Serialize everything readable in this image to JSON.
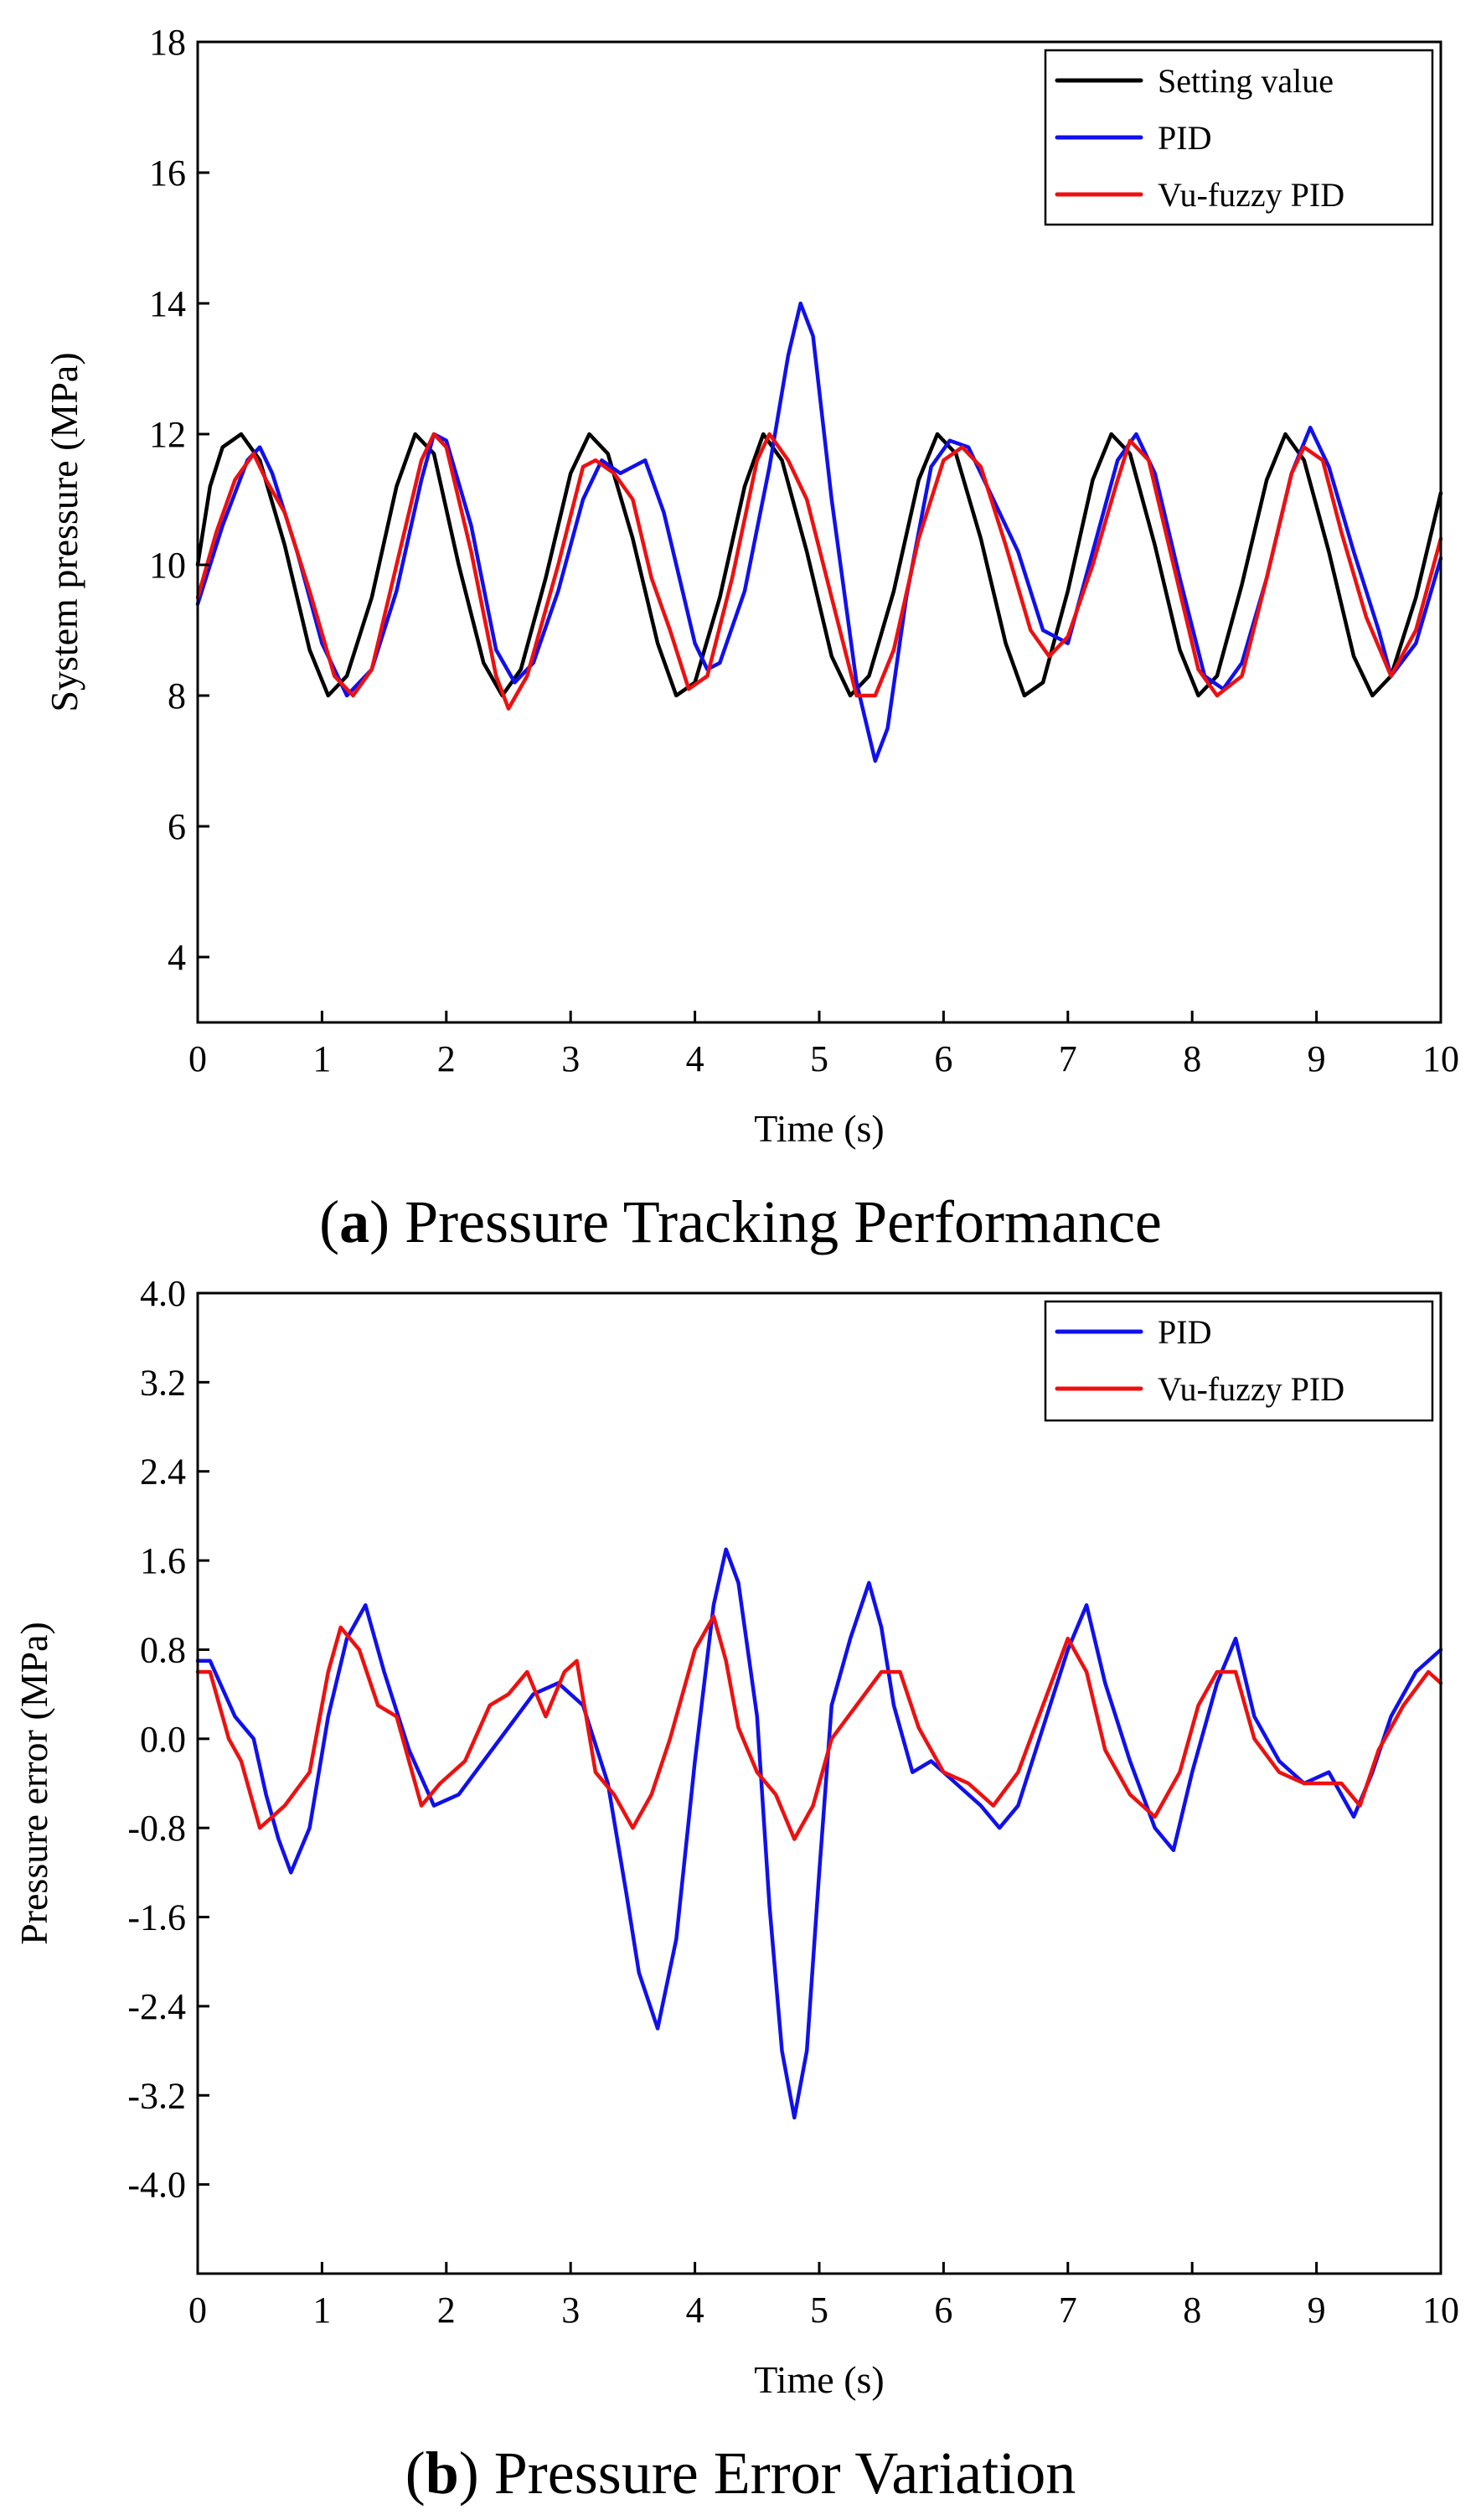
{
  "figure": {
    "panels": [
      {
        "panel_id": "a",
        "caption_letter": "a",
        "caption_text": "Pressure Tracking Performance"
      },
      {
        "panel_id": "b",
        "caption_letter": "b",
        "caption_text": "Pressure Error Variation"
      }
    ]
  },
  "colors": {
    "setting": "#000000",
    "pid": "#1010ee",
    "fuzzy": "#ee1010"
  },
  "chart_data": [
    {
      "type": "line",
      "title": "(a) Pressure Tracking Performance",
      "xlabel": "Time (s)",
      "ylabel": "System pressure (MPa)",
      "xlim": [
        0,
        10
      ],
      "ylim": [
        3,
        18
      ],
      "xticks": [
        "0",
        "1",
        "2",
        "3",
        "4",
        "5",
        "6",
        "7",
        "8",
        "9",
        "10"
      ],
      "yticks": [
        "4",
        "6",
        "8",
        "10",
        "12",
        "14",
        "16",
        "18"
      ],
      "xtick_values": [
        0,
        1,
        2,
        3,
        4,
        5,
        6,
        7,
        8,
        9,
        10
      ],
      "ytick_values": [
        4,
        6,
        8,
        10,
        12,
        14,
        16,
        18
      ],
      "legend_position": "top-right",
      "series": [
        {
          "name": "Setting value",
          "color": "#000000",
          "x": [
            0,
            0.1,
            0.2,
            0.35,
            0.5,
            0.7,
            0.9,
            1.05,
            1.2,
            1.4,
            1.6,
            1.75,
            1.9,
            2.1,
            2.3,
            2.45,
            2.6,
            2.8,
            3.0,
            3.15,
            3.3,
            3.5,
            3.7,
            3.85,
            4.0,
            4.2,
            4.4,
            4.55,
            4.7,
            4.9,
            5.1,
            5.25,
            5.4,
            5.6,
            5.8,
            5.95,
            6.1,
            6.3,
            6.5,
            6.65,
            6.8,
            7.0,
            7.2,
            7.35,
            7.5,
            7.7,
            7.9,
            8.05,
            8.2,
            8.4,
            8.6,
            8.75,
            8.9,
            9.1,
            9.3,
            9.45,
            9.6,
            9.8,
            10.0
          ],
          "y": [
            10.0,
            11.2,
            11.8,
            12.0,
            11.6,
            10.3,
            8.7,
            8.0,
            8.3,
            9.5,
            11.2,
            12.0,
            11.7,
            10.0,
            8.5,
            8.0,
            8.4,
            9.8,
            11.4,
            12.0,
            11.7,
            10.4,
            8.8,
            8.0,
            8.2,
            9.5,
            11.2,
            12.0,
            11.6,
            10.2,
            8.6,
            8.0,
            8.3,
            9.6,
            11.3,
            12.0,
            11.7,
            10.4,
            8.8,
            8.0,
            8.2,
            9.6,
            11.3,
            12.0,
            11.7,
            10.3,
            8.7,
            8.0,
            8.3,
            9.7,
            11.3,
            12.0,
            11.6,
            10.2,
            8.6,
            8.0,
            8.3,
            9.5,
            11.1
          ]
        },
        {
          "name": "PID",
          "color": "#1010ee",
          "x": [
            0,
            0.2,
            0.4,
            0.5,
            0.6,
            0.8,
            1.0,
            1.2,
            1.4,
            1.6,
            1.8,
            1.9,
            2.0,
            2.2,
            2.4,
            2.55,
            2.7,
            2.9,
            3.1,
            3.25,
            3.4,
            3.6,
            3.75,
            3.9,
            4.0,
            4.1,
            4.2,
            4.4,
            4.6,
            4.75,
            4.85,
            4.95,
            5.1,
            5.3,
            5.45,
            5.55,
            5.7,
            5.9,
            6.05,
            6.2,
            6.4,
            6.6,
            6.8,
            7.0,
            7.2,
            7.4,
            7.55,
            7.7,
            7.9,
            8.1,
            8.25,
            8.4,
            8.6,
            8.8,
            8.95,
            9.1,
            9.3,
            9.5,
            9.6,
            9.8,
            10.0
          ],
          "y": [
            9.4,
            10.6,
            11.6,
            11.8,
            11.4,
            10.2,
            8.8,
            8.0,
            8.4,
            9.6,
            11.3,
            12.0,
            11.9,
            10.6,
            8.7,
            8.2,
            8.5,
            9.6,
            11.0,
            11.6,
            11.4,
            11.6,
            10.8,
            9.6,
            8.8,
            8.4,
            8.5,
            9.6,
            11.5,
            13.2,
            14.0,
            13.5,
            11.0,
            8.2,
            7.0,
            7.5,
            9.5,
            11.5,
            11.9,
            11.8,
            11.0,
            10.2,
            9.0,
            8.8,
            10.2,
            11.6,
            12.0,
            11.4,
            9.8,
            8.3,
            8.1,
            8.5,
            9.8,
            11.4,
            12.1,
            11.5,
            10.2,
            9.0,
            8.3,
            8.8,
            10.1
          ]
        },
        {
          "name": "Vu-fuzzy PID",
          "color": "#ee1010",
          "x": [
            0,
            0.15,
            0.3,
            0.45,
            0.55,
            0.7,
            0.9,
            1.1,
            1.25,
            1.4,
            1.6,
            1.8,
            1.9,
            2.0,
            2.2,
            2.4,
            2.5,
            2.65,
            2.9,
            3.1,
            3.2,
            3.35,
            3.5,
            3.65,
            3.8,
            3.95,
            4.1,
            4.3,
            4.5,
            4.6,
            4.75,
            4.9,
            5.1,
            5.3,
            5.45,
            5.6,
            5.8,
            6.0,
            6.15,
            6.3,
            6.5,
            6.7,
            6.85,
            7.0,
            7.2,
            7.4,
            7.5,
            7.65,
            7.85,
            8.05,
            8.2,
            8.4,
            8.6,
            8.8,
            8.9,
            9.05,
            9.2,
            9.4,
            9.6,
            9.8,
            10.0
          ],
          "y": [
            9.5,
            10.5,
            11.3,
            11.7,
            11.3,
            10.8,
            9.6,
            8.3,
            8.0,
            8.4,
            10.0,
            11.6,
            12.0,
            11.8,
            10.2,
            8.3,
            7.8,
            8.3,
            10.0,
            11.5,
            11.6,
            11.4,
            11.0,
            9.8,
            9.0,
            8.1,
            8.3,
            9.8,
            11.6,
            12.0,
            11.6,
            11.0,
            9.5,
            8.0,
            8.0,
            8.7,
            10.4,
            11.6,
            11.8,
            11.5,
            10.3,
            9.0,
            8.6,
            8.9,
            10.0,
            11.3,
            11.9,
            11.6,
            10.0,
            8.4,
            8.0,
            8.3,
            9.8,
            11.4,
            11.8,
            11.6,
            10.5,
            9.2,
            8.3,
            9.0,
            10.4
          ]
        }
      ]
    },
    {
      "type": "line",
      "title": "(b) Pressure Error Variation",
      "xlabel": "Time (s)",
      "ylabel": "Pressure error (MPa)",
      "xlim": [
        0,
        10
      ],
      "ylim": [
        -4.8,
        4.0
      ],
      "xticks": [
        "0",
        "1",
        "2",
        "3",
        "4",
        "5",
        "6",
        "7",
        "8",
        "9",
        "10"
      ],
      "yticks": [
        "4.0",
        "3.2",
        "2.4",
        "1.6",
        "0.8",
        "0.0",
        "-0.8",
        "-1.6",
        "-2.4",
        "-3.2",
        "-4.0"
      ],
      "xtick_values": [
        0,
        1,
        2,
        3,
        4,
        5,
        6,
        7,
        8,
        9,
        10
      ],
      "ytick_values": [
        4.0,
        3.2,
        2.4,
        1.6,
        0.8,
        0.0,
        -0.8,
        -1.6,
        -2.4,
        -3.2,
        -4.0
      ],
      "legend_position": "top-right",
      "series": [
        {
          "name": "PID",
          "color": "#1010ee",
          "x": [
            0,
            0.1,
            0.3,
            0.45,
            0.55,
            0.65,
            0.75,
            0.9,
            1.05,
            1.2,
            1.35,
            1.5,
            1.7,
            1.9,
            2.1,
            2.3,
            2.5,
            2.7,
            2.9,
            3.1,
            3.3,
            3.45,
            3.55,
            3.7,
            3.85,
            4.0,
            4.15,
            4.25,
            4.35,
            4.5,
            4.6,
            4.7,
            4.8,
            4.9,
            5.0,
            5.1,
            5.25,
            5.4,
            5.5,
            5.6,
            5.75,
            5.9,
            6.1,
            6.3,
            6.45,
            6.6,
            6.8,
            7.0,
            7.15,
            7.3,
            7.5,
            7.7,
            7.85,
            8.0,
            8.2,
            8.35,
            8.5,
            8.7,
            8.9,
            9.1,
            9.3,
            9.45,
            9.6,
            9.8,
            10.0
          ],
          "y": [
            0.7,
            0.7,
            0.2,
            0.0,
            -0.5,
            -0.9,
            -1.2,
            -0.8,
            0.2,
            0.9,
            1.2,
            0.6,
            -0.1,
            -0.6,
            -0.5,
            -0.2,
            0.1,
            0.4,
            0.5,
            0.3,
            -0.4,
            -1.4,
            -2.1,
            -2.6,
            -1.8,
            -0.2,
            1.2,
            1.7,
            1.4,
            0.2,
            -1.5,
            -2.8,
            -3.4,
            -2.8,
            -1.2,
            0.3,
            0.9,
            1.4,
            1.0,
            0.3,
            -0.3,
            -0.2,
            -0.4,
            -0.6,
            -0.8,
            -0.6,
            0.1,
            0.8,
            1.2,
            0.5,
            -0.2,
            -0.8,
            -1.0,
            -0.3,
            0.5,
            0.9,
            0.2,
            -0.2,
            -0.4,
            -0.3,
            -0.7,
            -0.3,
            0.2,
            0.6,
            0.8
          ]
        },
        {
          "name": "Vu-fuzzy PID",
          "color": "#ee1010",
          "x": [
            0,
            0.1,
            0.25,
            0.35,
            0.5,
            0.7,
            0.9,
            1.05,
            1.15,
            1.3,
            1.45,
            1.6,
            1.8,
            1.95,
            2.15,
            2.35,
            2.5,
            2.65,
            2.8,
            2.95,
            3.05,
            3.2,
            3.35,
            3.5,
            3.65,
            3.8,
            4.0,
            4.15,
            4.25,
            4.35,
            4.5,
            4.65,
            4.8,
            4.95,
            5.1,
            5.3,
            5.5,
            5.65,
            5.8,
            6.0,
            6.2,
            6.4,
            6.6,
            6.8,
            7.0,
            7.15,
            7.3,
            7.5,
            7.7,
            7.9,
            8.05,
            8.2,
            8.35,
            8.5,
            8.7,
            8.9,
            9.05,
            9.2,
            9.35,
            9.5,
            9.7,
            9.9,
            10.0
          ],
          "y": [
            0.6,
            0.6,
            0.0,
            -0.2,
            -0.8,
            -0.6,
            -0.3,
            0.6,
            1.0,
            0.8,
            0.3,
            0.2,
            -0.6,
            -0.4,
            -0.2,
            0.3,
            0.4,
            0.6,
            0.2,
            0.6,
            0.7,
            -0.3,
            -0.5,
            -0.8,
            -0.5,
            0.0,
            0.8,
            1.1,
            0.7,
            0.1,
            -0.3,
            -0.5,
            -0.9,
            -0.6,
            0.0,
            0.3,
            0.6,
            0.6,
            0.1,
            -0.3,
            -0.4,
            -0.6,
            -0.3,
            0.3,
            0.9,
            0.6,
            -0.1,
            -0.5,
            -0.7,
            -0.3,
            0.3,
            0.6,
            0.6,
            0.0,
            -0.3,
            -0.4,
            -0.4,
            -0.4,
            -0.6,
            -0.1,
            0.3,
            0.6,
            0.5
          ]
        }
      ]
    }
  ]
}
